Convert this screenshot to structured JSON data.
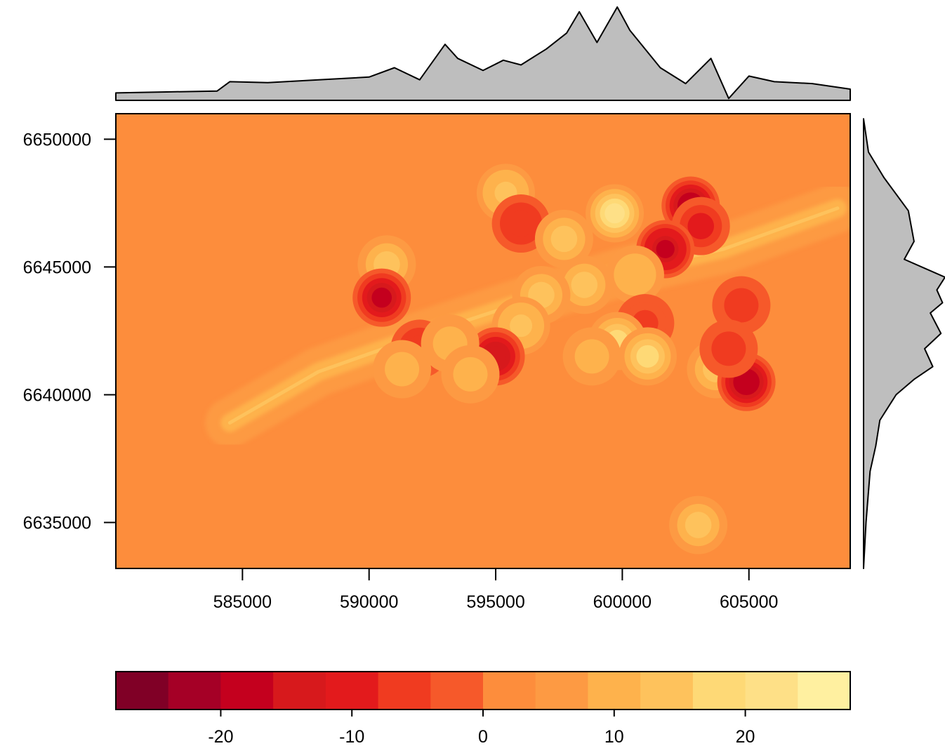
{
  "chart_data": {
    "type": "heatmap",
    "title": "",
    "xlabel": "",
    "ylabel": "",
    "xlim": [
      580000,
      609000
    ],
    "ylim": [
      6633200,
      6651000
    ],
    "x_ticks": [
      585000,
      590000,
      595000,
      600000,
      605000
    ],
    "x_tick_labels": [
      "585000",
      "590000",
      "595000",
      "600000",
      "605000"
    ],
    "y_ticks": [
      6635000,
      6640000,
      6645000,
      6650000
    ],
    "y_tick_labels": [
      "6635000",
      "6640000",
      "6645000",
      "6650000"
    ],
    "background_value": 2,
    "ridge": [
      {
        "x": 584500,
        "y": 6638900
      },
      {
        "x": 588000,
        "y": 6640900
      },
      {
        "x": 592000,
        "y": 6642300
      },
      {
        "x": 596000,
        "y": 6643600
      },
      {
        "x": 600000,
        "y": 6644800
      },
      {
        "x": 604000,
        "y": 6645700
      },
      {
        "x": 608500,
        "y": 6647300
      }
    ],
    "blobs": [
      {
        "x": 595400,
        "y": 6647900,
        "value": 15
      },
      {
        "x": 596000,
        "y": 6646700,
        "value": -8
      },
      {
        "x": 590700,
        "y": 6645100,
        "value": 12
      },
      {
        "x": 590500,
        "y": 6643800,
        "value": -17
      },
      {
        "x": 599700,
        "y": 6647100,
        "value": 20
      },
      {
        "x": 597700,
        "y": 6646100,
        "value": 14
      },
      {
        "x": 602700,
        "y": 6647400,
        "value": -20
      },
      {
        "x": 603100,
        "y": 6646600,
        "value": -10
      },
      {
        "x": 601700,
        "y": 6645700,
        "value": -19
      },
      {
        "x": 600500,
        "y": 6644700,
        "value": 11
      },
      {
        "x": 598500,
        "y": 6644300,
        "value": 12
      },
      {
        "x": 596800,
        "y": 6643900,
        "value": 13
      },
      {
        "x": 596000,
        "y": 6642700,
        "value": 15
      },
      {
        "x": 600900,
        "y": 6642800,
        "value": -7
      },
      {
        "x": 599800,
        "y": 6642100,
        "value": 16
      },
      {
        "x": 601000,
        "y": 6641500,
        "value": 18
      },
      {
        "x": 604700,
        "y": 6643500,
        "value": -6
      },
      {
        "x": 603700,
        "y": 6641000,
        "value": 14
      },
      {
        "x": 604900,
        "y": 6640500,
        "value": -20
      },
      {
        "x": 604200,
        "y": 6641800,
        "value": -6
      },
      {
        "x": 595000,
        "y": 6641500,
        "value": -16
      },
      {
        "x": 592000,
        "y": 6641800,
        "value": -8
      },
      {
        "x": 591300,
        "y": 6641000,
        "value": 10
      },
      {
        "x": 593200,
        "y": 6642000,
        "value": 10
      },
      {
        "x": 594000,
        "y": 6640800,
        "value": 9
      },
      {
        "x": 598800,
        "y": 6641500,
        "value": 9
      },
      {
        "x": 603000,
        "y": 6634900,
        "value": 12
      }
    ],
    "top_density_x": [
      580000,
      582000,
      584000,
      584500,
      586000,
      588000,
      590000,
      591000,
      592000,
      593000,
      593500,
      594500,
      595300,
      596000,
      597000,
      597800,
      598300,
      599000,
      599800,
      600300,
      601500,
      602500,
      603500,
      604200,
      605000,
      606000,
      607500,
      609000
    ],
    "top_density_y": [
      0.08,
      0.09,
      0.1,
      0.2,
      0.19,
      0.22,
      0.25,
      0.35,
      0.22,
      0.6,
      0.45,
      0.32,
      0.43,
      0.38,
      0.55,
      0.72,
      0.95,
      0.62,
      1.0,
      0.75,
      0.35,
      0.18,
      0.45,
      0.02,
      0.26,
      0.2,
      0.18,
      0.12
    ],
    "right_density_y": [
      6633200,
      6635000,
      6637000,
      6638000,
      6639000,
      6640000,
      6640600,
      6641100,
      6641800,
      6642400,
      6643200,
      6643600,
      6644100,
      6644600,
      6645300,
      6646000,
      6647200,
      6648500,
      6649500,
      6650800
    ],
    "right_density_v": [
      0.0,
      0.03,
      0.08,
      0.15,
      0.2,
      0.4,
      0.62,
      0.85,
      0.75,
      0.95,
      0.82,
      0.97,
      0.9,
      1.0,
      0.5,
      0.62,
      0.55,
      0.25,
      0.06,
      0.0
    ],
    "legend": {
      "breaks": [
        -28,
        -24,
        -20,
        -16,
        -12,
        -8,
        -4,
        0,
        4,
        8,
        12,
        16,
        20,
        24,
        28
      ],
      "colors": [
        "#800026",
        "#a50026",
        "#c4001e",
        "#d7191c",
        "#e31a1c",
        "#f03b20",
        "#f6592a",
        "#fd8d3c",
        "#fd9a43",
        "#feb24c",
        "#fec25c",
        "#fed976",
        "#fee087",
        "#fff0a0",
        "#ffffc4"
      ],
      "tick_values": [
        -20,
        -10,
        0,
        10,
        20
      ],
      "tick_labels": [
        "-20",
        "-10",
        "0",
        "10",
        "20"
      ]
    }
  }
}
